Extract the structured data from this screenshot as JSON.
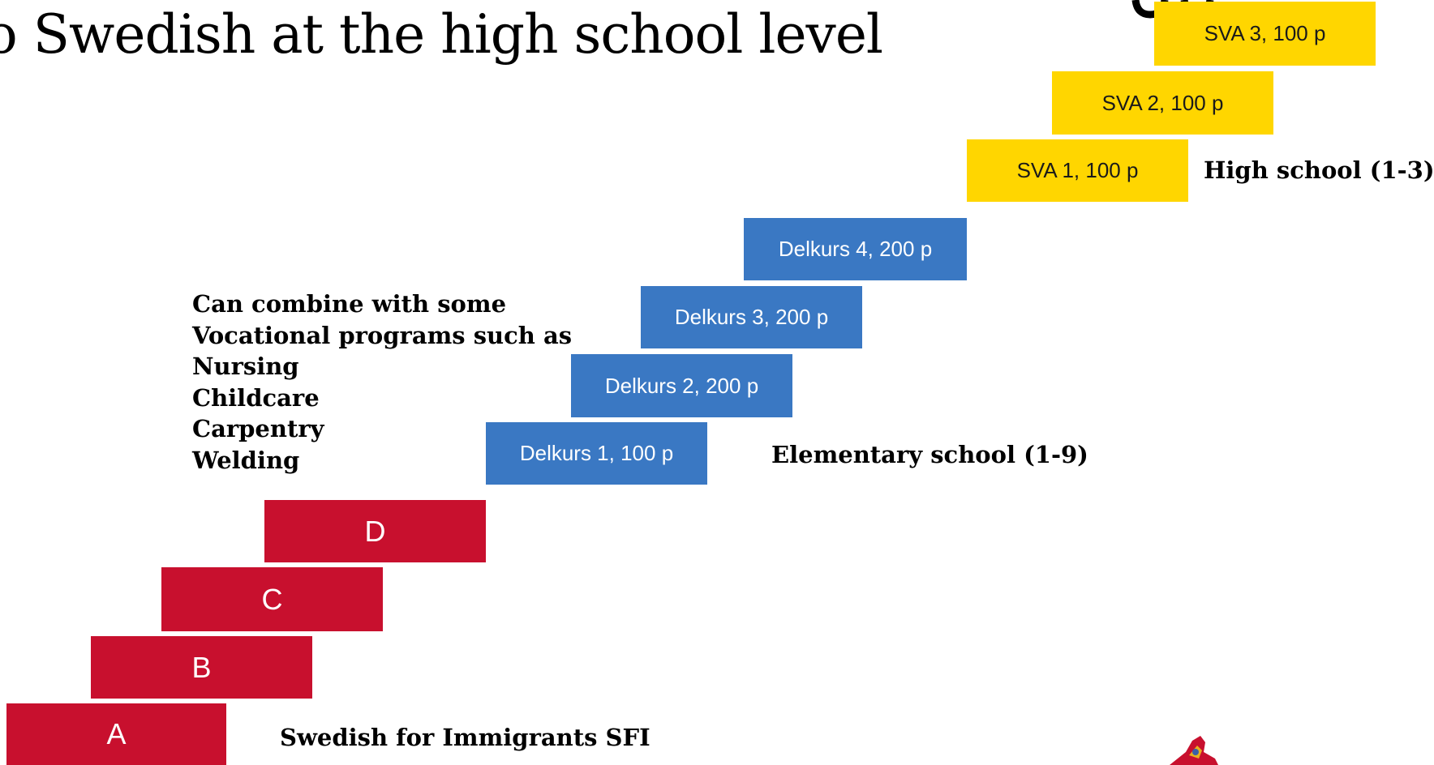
{
  "title": {
    "text": "o Swedish at the high school level"
  },
  "colors": {
    "sfi": "#c8102e",
    "elementary": "#3a78c3",
    "high_school": "#ffd600"
  },
  "steps": {
    "sfi": [
      "A",
      "B",
      "C",
      "D"
    ],
    "elementary": [
      "Delkurs 1, 100 p",
      "Delkurs 2, 200 p",
      "Delkurs 3, 200 p",
      "Delkurs 4, 200 p"
    ],
    "high_school": [
      "SVA 1, 100 p",
      "SVA 2, 100 p",
      "SVA 3, 100 p"
    ]
  },
  "labels": {
    "sfi": "Swedish for Immigrants SFI",
    "elementary": "Elementary school (1-9)",
    "high_school": "High school (1-3)"
  },
  "note": {
    "lines": [
      "Can combine with some",
      "Vocational programs such as",
      "Nursing",
      "Childcare",
      "Carpentry",
      "Welding"
    ]
  }
}
